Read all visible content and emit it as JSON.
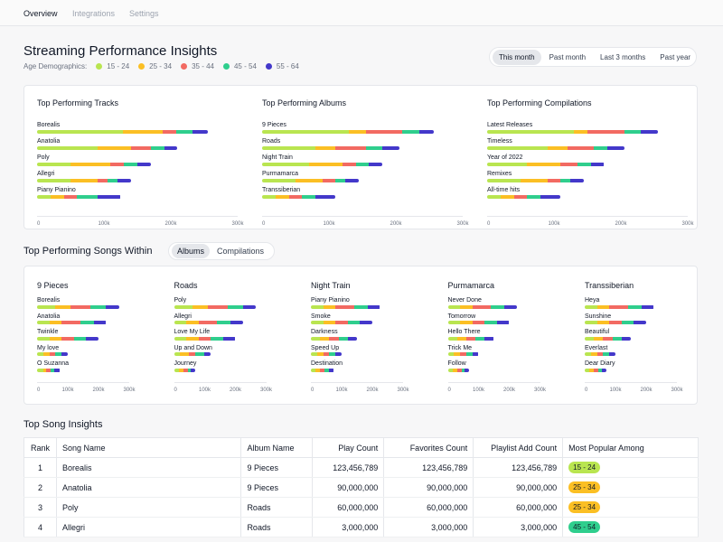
{
  "tabs": [
    "Overview",
    "Integrations",
    "Settings"
  ],
  "title": "Streaming Performance Insights",
  "legend_label": "Age Demographics:",
  "age_groups": [
    {
      "label": "15 - 24",
      "color": "#b9e550"
    },
    {
      "label": "25 - 34",
      "color": "#fbbf24"
    },
    {
      "label": "35 - 44",
      "color": "#f26a62"
    },
    {
      "label": "45 - 54",
      "color": "#2fce8d"
    },
    {
      "label": "55 - 64",
      "color": "#4338ca"
    }
  ],
  "time_ranges": [
    "This month",
    "Past month",
    "Last 3 months",
    "Past year"
  ],
  "axis_ticks": [
    "0",
    "100k",
    "200k",
    "300k"
  ],
  "top_panels": [
    {
      "title": "Top Performing Tracks",
      "rows": [
        {
          "label": "Borealis",
          "values": [
            128000,
            60000,
            20000,
            25000,
            23000
          ]
        },
        {
          "label": "Anatolia",
          "values": [
            90000,
            50000,
            30000,
            20000,
            20000
          ]
        },
        {
          "label": "Poly",
          "values": [
            50000,
            60000,
            20000,
            20000,
            20000
          ]
        },
        {
          "label": "Allegri",
          "values": [
            50000,
            40000,
            15000,
            15000,
            20000
          ]
        },
        {
          "label": "Piany Pianino",
          "values": [
            20000,
            20000,
            20000,
            30000,
            35000
          ]
        }
      ]
    },
    {
      "title": "Top Performing Albums",
      "rows": [
        {
          "label": "9 Pieces",
          "values": [
            130000,
            25000,
            55000,
            25000,
            22000
          ]
        },
        {
          "label": "Roads",
          "values": [
            80000,
            30000,
            45000,
            25000,
            25000
          ]
        },
        {
          "label": "Night Train",
          "values": [
            70000,
            50000,
            20000,
            20000,
            20000
          ]
        },
        {
          "label": "Purmamarca",
          "values": [
            50000,
            40000,
            20000,
            15000,
            20000
          ]
        },
        {
          "label": "Transsiberian",
          "values": [
            20000,
            20000,
            20000,
            20000,
            30000
          ]
        }
      ]
    },
    {
      "title": "Top Performing Compilations",
      "rows": [
        {
          "label": "Latest Releases",
          "values": [
            130000,
            20000,
            55000,
            25000,
            25000
          ]
        },
        {
          "label": "Timeless",
          "values": [
            90000,
            30000,
            40000,
            20000,
            25000
          ]
        },
        {
          "label": "Year of 2022",
          "values": [
            60000,
            50000,
            25000,
            20000,
            20000
          ]
        },
        {
          "label": "Remixes",
          "values": [
            50000,
            40000,
            20000,
            15000,
            20000
          ]
        },
        {
          "label": "All-time hits",
          "values": [
            20000,
            20000,
            20000,
            20000,
            30000
          ]
        }
      ]
    }
  ],
  "songs_within": {
    "title": "Top Performing Songs Within",
    "options": [
      "Albums",
      "Compilations"
    ],
    "axis_ticks": [
      "0",
      "100k",
      "200k",
      "300k"
    ],
    "panels": [
      {
        "title": "9 Pieces",
        "rows": [
          {
            "label": "Borealis",
            "values": [
              60000,
              50000,
              65000,
              50000,
              42000
            ]
          },
          {
            "label": "Anatolia",
            "values": [
              40000,
              40000,
              60000,
              45000,
              40000
            ]
          },
          {
            "label": "Twinkle",
            "values": [
              40000,
              40000,
              40000,
              40000,
              40000
            ]
          },
          {
            "label": "My love",
            "values": [
              20000,
              20000,
              20000,
              20000,
              20000
            ]
          },
          {
            "label": "O Suzanna",
            "values": [
              20000,
              10000,
              15000,
              10000,
              20000
            ]
          }
        ]
      },
      {
        "title": "Roads",
        "rows": [
          {
            "label": "Poly",
            "values": [
              60000,
              50000,
              65000,
              50000,
              42000
            ]
          },
          {
            "label": "Allegri",
            "values": [
              40000,
              40000,
              60000,
              45000,
              40000
            ]
          },
          {
            "label": "Love My Life",
            "values": [
              40000,
              40000,
              40000,
              40000,
              40000
            ]
          },
          {
            "label": "Up and Down",
            "values": [
              20000,
              30000,
              20000,
              30000,
              20000
            ]
          },
          {
            "label": "Journey",
            "values": [
              15000,
              15000,
              15000,
              10000,
              15000
            ]
          }
        ]
      },
      {
        "title": "Night Train",
        "rows": [
          {
            "label": "Piany Pianino",
            "values": [
              40000,
              40000,
              60000,
              45000,
              40000
            ]
          },
          {
            "label": "Smoke",
            "values": [
              40000,
              40000,
              40000,
              40000,
              40000
            ]
          },
          {
            "label": "Darkness",
            "values": [
              30000,
              30000,
              30000,
              30000,
              30000
            ]
          },
          {
            "label": "Speed Up",
            "values": [
              20000,
              20000,
              20000,
              20000,
              20000
            ]
          },
          {
            "label": "Destination",
            "values": [
              15000,
              15000,
              15000,
              15000,
              15000
            ]
          }
        ]
      },
      {
        "title": "Purmamarca",
        "rows": [
          {
            "label": "Never Done",
            "values": [
              40000,
              40000,
              60000,
              45000,
              40000
            ]
          },
          {
            "label": "Tomorrow",
            "values": [
              40000,
              40000,
              40000,
              40000,
              40000
            ]
          },
          {
            "label": "Hello There",
            "values": [
              30000,
              30000,
              30000,
              30000,
              30000
            ]
          },
          {
            "label": "Trick Me",
            "values": [
              20000,
              20000,
              20000,
              20000,
              20000
            ]
          },
          {
            "label": "Follow",
            "values": [
              15000,
              15000,
              15000,
              10000,
              15000
            ]
          }
        ]
      },
      {
        "title": "Transsiberian",
        "rows": [
          {
            "label": "Heya",
            "values": [
              40000,
              40000,
              60000,
              45000,
              40000
            ]
          },
          {
            "label": "Sunshine",
            "values": [
              40000,
              40000,
              40000,
              40000,
              40000
            ]
          },
          {
            "label": "Beautiful",
            "values": [
              30000,
              30000,
              30000,
              30000,
              30000
            ]
          },
          {
            "label": "Everlast",
            "values": [
              20000,
              20000,
              20000,
              20000,
              20000
            ]
          },
          {
            "label": "Dear Diary",
            "values": [
              15000,
              15000,
              15000,
              10000,
              15000
            ]
          }
        ]
      }
    ]
  },
  "insights": {
    "title": "Top Song Insights",
    "headers": [
      "Rank",
      "Song Name",
      "Album Name",
      "Play Count",
      "Favorites Count",
      "Playlist Add Count",
      "Most Popular Among"
    ],
    "rows": [
      {
        "rank": "1",
        "song": "Borealis",
        "album": "9 Pieces",
        "plays": "123,456,789",
        "favorites": "123,456,789",
        "playlist": "123,456,789",
        "popular": "15 - 24",
        "popular_color": "#b9e550"
      },
      {
        "rank": "2",
        "song": "Anatolia",
        "album": "9 Pieces",
        "plays": "90,000,000",
        "favorites": "90,000,000",
        "playlist": "90,000,000",
        "popular": "25 - 34",
        "popular_color": "#fbbf24"
      },
      {
        "rank": "3",
        "song": "Poly",
        "album": "Roads",
        "plays": "60,000,000",
        "favorites": "60,000,000",
        "playlist": "60,000,000",
        "popular": "25 - 34",
        "popular_color": "#fbbf24"
      },
      {
        "rank": "4",
        "song": "Allegri",
        "album": "Roads",
        "plays": "3,000,000",
        "favorites": "3,000,000",
        "playlist": "3,000,000",
        "popular": "45 - 54",
        "popular_color": "#2fce8d"
      }
    ]
  }
}
